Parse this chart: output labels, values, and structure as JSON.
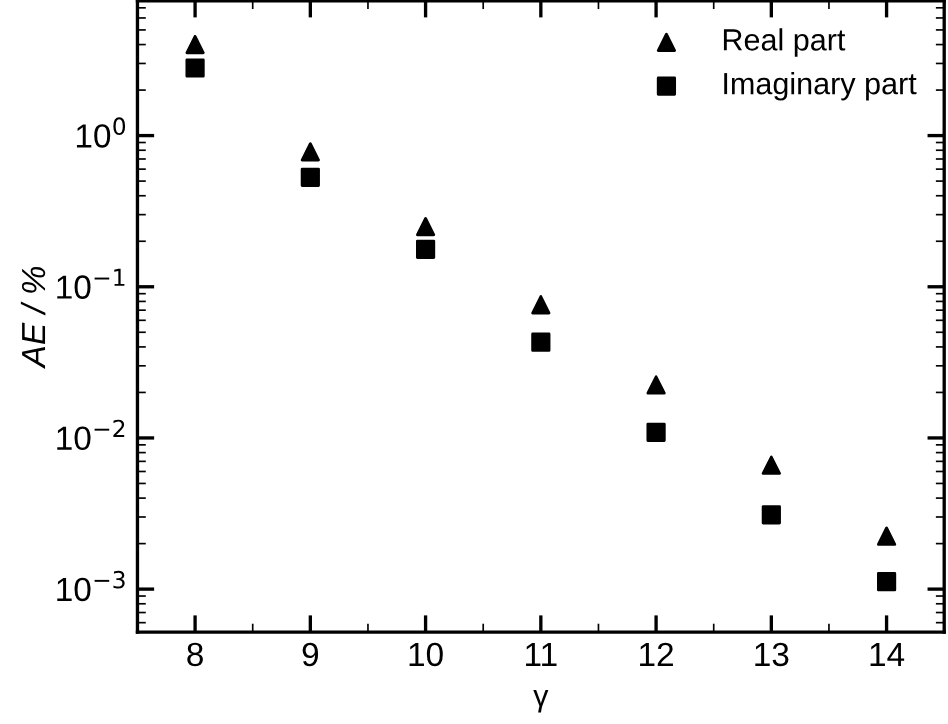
{
  "chart_data": {
    "type": "scatter",
    "xlabel": "γ",
    "ylabel": "AE / %",
    "x": [
      8,
      9,
      10,
      11,
      12,
      13,
      14
    ],
    "series": [
      {
        "name": "Real part",
        "color": "#000000",
        "marker": "triangle",
        "values": [
          4.0,
          0.78,
          0.25,
          0.076,
          0.0224,
          0.0066,
          0.00224
        ]
      },
      {
        "name": "Imaginary part",
        "color": "#000000",
        "marker": "square",
        "values": [
          2.8,
          0.53,
          0.177,
          0.043,
          0.0109,
          0.0031,
          0.00112
        ]
      }
    ],
    "log": "y",
    "xlim": [
      7.5,
      14.5
    ],
    "xticks": [
      8,
      9,
      10,
      11,
      12,
      13,
      14
    ],
    "ylim": [
      0.00052,
      7.8
    ],
    "yticks": [
      {
        "value": 0.001,
        "label": "10$^{−3}$"
      },
      {
        "value": 0.01,
        "label": "10$^{−2}$"
      },
      {
        "value": 0.1,
        "label": "10$^{−1}$"
      },
      {
        "value": 1,
        "label": "10$^{0}$"
      }
    ],
    "grid": false,
    "legend": "top right"
  }
}
